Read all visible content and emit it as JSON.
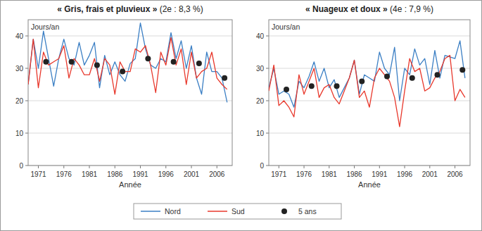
{
  "chart_data": [
    {
      "type": "line",
      "title": "« Gris, frais et pluvieux » (2e : 8,3 %)",
      "y_label": "Jours/an",
      "x_label": "Année",
      "x": [
        1969,
        1970,
        1971,
        1972,
        1973,
        1974,
        1975,
        1976,
        1977,
        1978,
        1979,
        1980,
        1981,
        1982,
        1983,
        1984,
        1985,
        1986,
        1987,
        1988,
        1989,
        1990,
        1991,
        1992,
        1993,
        1994,
        1995,
        1996,
        1997,
        1998,
        1999,
        2000,
        2001,
        2002,
        2003,
        2004,
        2005,
        2006,
        2007,
        2008
      ],
      "xlim": [
        1969,
        2009
      ],
      "xticks": [
        1971,
        1976,
        1981,
        1986,
        1991,
        1996,
        2001,
        2006
      ],
      "ylim": [
        0,
        45
      ],
      "yticks": [
        0,
        10,
        20,
        30,
        40
      ],
      "grid": true,
      "legend": "bottom",
      "series": [
        {
          "name": "Nord",
          "color": "#3b7fc4",
          "type": "line",
          "values": [
            25,
            39,
            30,
            41.5,
            33,
            24.5,
            33,
            39,
            33,
            31,
            38,
            31,
            34,
            38,
            24,
            34,
            28,
            32,
            28,
            26,
            31.5,
            33,
            44,
            36,
            31,
            30,
            33,
            32,
            41,
            33,
            38.5,
            30,
            37,
            27,
            22,
            35,
            29,
            29,
            27,
            19.5
          ]
        },
        {
          "name": "Sud",
          "color": "#e8382c",
          "type": "line",
          "values": [
            25,
            39,
            24,
            35,
            31,
            32,
            33,
            37,
            27,
            33,
            31,
            28,
            28,
            33,
            26,
            33,
            31,
            22,
            32,
            29,
            29,
            36,
            35,
            37,
            31,
            22.5,
            35,
            31,
            39.5,
            31,
            36,
            25,
            35,
            27,
            29,
            30,
            35,
            27,
            25,
            23.5
          ]
        },
        {
          "name": "5 ans",
          "color": "#222222",
          "type": "scatter",
          "marker": "circle",
          "x": [
            1972.5,
            1977.5,
            1982.5,
            1987.5,
            1992.5,
            1997.5,
            2002.5,
            2007.5
          ],
          "values": [
            32,
            32,
            31,
            29,
            33,
            32,
            31.5,
            27
          ]
        }
      ]
    },
    {
      "type": "line",
      "title": "« Nuageux et doux » (4e : 7,9 %)",
      "y_label": "Jours/an",
      "x_label": "Année",
      "x": [
        1969,
        1970,
        1971,
        1972,
        1973,
        1974,
        1975,
        1976,
        1977,
        1978,
        1979,
        1980,
        1981,
        1982,
        1983,
        1984,
        1985,
        1986,
        1987,
        1988,
        1989,
        1990,
        1991,
        1992,
        1993,
        1994,
        1995,
        1996,
        1997,
        1998,
        1999,
        2000,
        2001,
        2002,
        2003,
        2004,
        2005,
        2006,
        2007,
        2008
      ],
      "xlim": [
        1969,
        2009
      ],
      "xticks": [
        1971,
        1976,
        1981,
        1986,
        1991,
        1996,
        2001,
        2006
      ],
      "ylim": [
        0,
        45
      ],
      "yticks": [
        0,
        10,
        20,
        30,
        40
      ],
      "grid": true,
      "series": [
        {
          "name": "Nord",
          "color": "#3b7fc4",
          "type": "line",
          "values": [
            24,
            30,
            22,
            23,
            22,
            18,
            26,
            24,
            27.5,
            32,
            26,
            30,
            24,
            26.5,
            21,
            24,
            27,
            32.5,
            22,
            28,
            27,
            26,
            35,
            30,
            28,
            36.5,
            20,
            30,
            28,
            36,
            31,
            33,
            25,
            35.5,
            27,
            34,
            33.5,
            33,
            38.5,
            27
          ]
        },
        {
          "name": "Sud",
          "color": "#e8382c",
          "type": "line",
          "values": [
            23,
            31,
            18.5,
            20,
            18,
            15,
            28,
            22,
            26,
            30,
            21,
            24,
            25,
            21,
            19,
            23,
            27,
            32.5,
            21,
            23,
            18,
            27,
            30,
            28,
            26,
            21,
            12,
            23,
            33,
            29,
            30,
            23,
            24,
            27,
            29,
            33,
            34,
            20,
            23.5,
            21
          ]
        },
        {
          "name": "5 ans",
          "color": "#222222",
          "type": "scatter",
          "marker": "circle",
          "x": [
            1972.5,
            1977.5,
            1982.5,
            1987.5,
            1992.5,
            1997.5,
            2002.5,
            2007.5
          ],
          "values": [
            23.5,
            24.5,
            24.5,
            26,
            27.5,
            27,
            28,
            29.5
          ]
        }
      ]
    }
  ]
}
